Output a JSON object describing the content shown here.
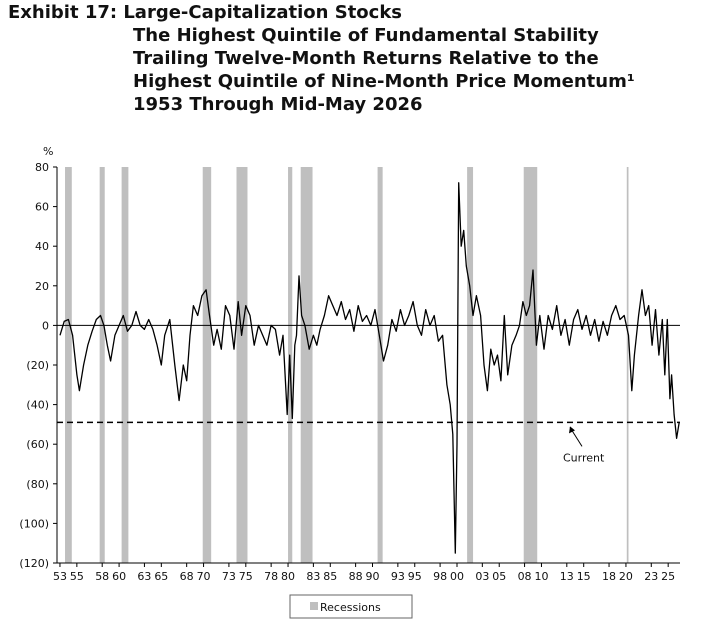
{
  "chart_data": {
    "type": "line",
    "title": "Exhibit 17: Large-Capitalization Stocks",
    "subtitle": [
      "The Highest Quintile of Fundamental Stability",
      "Trailing Twelve-Month Returns Relative to the",
      "Highest Quintile of Nine-Month Price Momentum¹",
      "1953 Through Mid-May 2026"
    ],
    "y_unit": "%",
    "color": "#000000",
    "x": [
      1953.0,
      1953.5,
      1954.0,
      1954.5,
      1955.0,
      1955.3,
      1955.8,
      1956.3,
      1956.8,
      1957.3,
      1957.8,
      1958.2,
      1958.6,
      1959.0,
      1959.5,
      1960.0,
      1960.5,
      1961.0,
      1961.5,
      1962.0,
      1962.5,
      1963.0,
      1963.5,
      1964.0,
      1964.5,
      1965.0,
      1965.4,
      1966.0,
      1966.6,
      1967.1,
      1967.6,
      1968.0,
      1968.4,
      1968.8,
      1969.3,
      1969.8,
      1970.3,
      1970.7,
      1971.2,
      1971.6,
      1972.1,
      1972.6,
      1973.1,
      1973.6,
      1974.1,
      1974.5,
      1975.0,
      1975.5,
      1976.0,
      1976.5,
      1977.0,
      1977.5,
      1978.0,
      1978.5,
      1979.0,
      1979.4,
      1979.9,
      1980.2,
      1980.5,
      1980.8,
      1981.0,
      1981.3,
      1981.6,
      1982.0,
      1982.5,
      1983.0,
      1983.4,
      1983.8,
      1984.3,
      1984.8,
      1985.3,
      1985.8,
      1986.3,
      1986.8,
      1987.3,
      1987.8,
      1988.3,
      1988.8,
      1989.3,
      1989.8,
      1990.3,
      1990.8,
      1991.3,
      1991.8,
      1992.3,
      1992.8,
      1993.3,
      1993.8,
      1994.3,
      1994.8,
      1995.3,
      1995.8,
      1996.3,
      1996.8,
      1997.3,
      1997.8,
      1998.3,
      1998.8,
      1999.2,
      1999.5,
      1999.8,
      2000.0,
      2000.2,
      2000.5,
      2000.8,
      2001.1,
      2001.5,
      2001.9,
      2002.3,
      2002.8,
      2003.2,
      2003.6,
      2004.0,
      2004.4,
      2004.8,
      2005.2,
      2005.6,
      2006.0,
      2006.5,
      2007.0,
      2007.4,
      2007.8,
      2008.2,
      2008.6,
      2009.0,
      2009.4,
      2009.8,
      2010.3,
      2010.8,
      2011.3,
      2011.8,
      2012.3,
      2012.8,
      2013.3,
      2013.8,
      2014.3,
      2014.8,
      2015.3,
      2015.8,
      2016.3,
      2016.8,
      2017.3,
      2017.8,
      2018.3,
      2018.8,
      2019.3,
      2019.8,
      2020.3,
      2020.7,
      2021.0,
      2021.5,
      2021.9,
      2022.3,
      2022.7,
      2023.1,
      2023.5,
      2023.9,
      2024.3,
      2024.6,
      2024.9,
      2025.2,
      2025.4,
      2025.7,
      2026.0,
      2026.3
    ],
    "values": [
      -5,
      2,
      3,
      -5,
      -25,
      -33,
      -20,
      -10,
      -3,
      3,
      5,
      0,
      -10,
      -18,
      -5,
      0,
      5,
      -3,
      0,
      7,
      0,
      -2,
      3,
      -2,
      -10,
      -20,
      -5,
      3,
      -20,
      -38,
      -20,
      -28,
      -5,
      10,
      5,
      15,
      18,
      5,
      -10,
      -2,
      -12,
      10,
      5,
      -12,
      12,
      -5,
      10,
      5,
      -10,
      0,
      -5,
      -10,
      0,
      -2,
      -15,
      -5,
      -45,
      -15,
      -47,
      -10,
      -5,
      25,
      5,
      0,
      -12,
      -5,
      -10,
      -2,
      5,
      15,
      10,
      5,
      12,
      3,
      8,
      -3,
      10,
      2,
      5,
      0,
      8,
      -5,
      -18,
      -10,
      3,
      -3,
      8,
      0,
      5,
      12,
      0,
      -5,
      8,
      0,
      5,
      -8,
      -5,
      -30,
      -40,
      -55,
      -115,
      -60,
      72,
      40,
      48,
      30,
      20,
      5,
      15,
      5,
      -20,
      -33,
      -12,
      -20,
      -15,
      -28,
      5,
      -25,
      -10,
      -5,
      0,
      12,
      5,
      10,
      28,
      -10,
      5,
      -12,
      5,
      -2,
      10,
      -5,
      3,
      -10,
      3,
      8,
      -2,
      5,
      -5,
      3,
      -8,
      2,
      -5,
      5,
      10,
      3,
      5,
      -5,
      -33,
      -15,
      5,
      18,
      5,
      10,
      -10,
      8,
      -15,
      3,
      -25,
      3,
      -37,
      -25,
      -45,
      -57,
      -49
    ],
    "xlim": [
      1952.65,
      2026.4
    ],
    "ylim": [
      -120,
      80
    ],
    "yticks": [
      {
        "value": -120,
        "label": "(120)"
      },
      {
        "value": -100,
        "label": "(100)"
      },
      {
        "value": -80,
        "label": "(80)"
      },
      {
        "value": -60,
        "label": "(60)"
      },
      {
        "value": -40,
        "label": "(40)"
      },
      {
        "value": -20,
        "label": "(20)"
      },
      0,
      20,
      40,
      60,
      80
    ],
    "xticks": [
      {
        "value": 1953,
        "label": "53"
      },
      {
        "value": 1955,
        "label": "55"
      },
      {
        "value": 1958,
        "label": "58"
      },
      {
        "value": 1960,
        "label": "60"
      },
      {
        "value": 1963,
        "label": "63"
      },
      {
        "value": 1965,
        "label": "65"
      },
      {
        "value": 1968,
        "label": "68"
      },
      {
        "value": 1970,
        "label": "70"
      },
      {
        "value": 1973,
        "label": "73"
      },
      {
        "value": 1975,
        "label": "75"
      },
      {
        "value": 1978,
        "label": "78"
      },
      {
        "value": 1980,
        "label": "80"
      },
      {
        "value": 1983,
        "label": "83"
      },
      {
        "value": 1985,
        "label": "85"
      },
      {
        "value": 1988,
        "label": "88"
      },
      {
        "value": 1990,
        "label": "90"
      },
      {
        "value": 1993,
        "label": "93"
      },
      {
        "value": 1995,
        "label": "95"
      },
      {
        "value": 1998,
        "label": "98"
      },
      {
        "value": 2000,
        "label": "00"
      },
      {
        "value": 2003,
        "label": "03"
      },
      {
        "value": 2005,
        "label": "05"
      },
      {
        "value": 2008,
        "label": "08"
      },
      {
        "value": 2010,
        "label": "10"
      },
      {
        "value": 2013,
        "label": "13"
      },
      {
        "value": 2015,
        "label": "15"
      },
      {
        "value": 2018,
        "label": "18"
      },
      {
        "value": 2020,
        "label": "20"
      },
      {
        "value": 2023,
        "label": "23"
      },
      {
        "value": 2025,
        "label": "25"
      }
    ],
    "reference_line": {
      "value": -49,
      "label": "Current"
    },
    "recessions": {
      "name": "Recessions",
      "color": "#bfbfbf",
      "spans": [
        [
          1953.6,
          1954.4
        ],
        [
          1957.7,
          1958.3
        ],
        [
          1960.3,
          1961.1
        ],
        [
          1969.9,
          1970.9
        ],
        [
          1973.9,
          1975.2
        ],
        [
          1980.0,
          1980.5
        ],
        [
          1981.5,
          1982.9
        ],
        [
          1990.6,
          1991.2
        ],
        [
          2001.2,
          2001.9
        ],
        [
          2007.9,
          2009.5
        ],
        [
          2020.1,
          2020.3
        ]
      ]
    }
  }
}
